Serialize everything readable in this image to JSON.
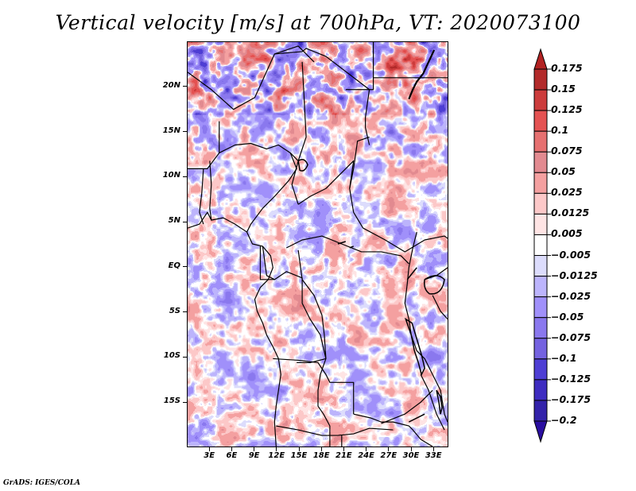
{
  "title": "Vertical velocity [m/s] at 700hPa, VT: 2020073100",
  "credit": "GrADS: IGES/COLA",
  "map": {
    "variable": "Vertical velocity",
    "units": "m/s",
    "level": "700hPa",
    "valid_time": "2020073100",
    "region": "Central Africa",
    "lon_range": [
      0,
      35
    ],
    "lat_range": [
      -20,
      25
    ],
    "y_axis_labels": [
      {
        "label": "20N",
        "lat": 20
      },
      {
        "label": "15N",
        "lat": 15
      },
      {
        "label": "10N",
        "lat": 10
      },
      {
        "label": "5N",
        "lat": 5
      },
      {
        "label": "EQ",
        "lat": 0
      },
      {
        "label": "5S",
        "lat": -5
      },
      {
        "label": "10S",
        "lat": -10
      },
      {
        "label": "15S",
        "lat": -15
      }
    ],
    "x_axis_labels": [
      {
        "label": "3E",
        "lon": 3
      },
      {
        "label": "6E",
        "lon": 6
      },
      {
        "label": "9E",
        "lon": 9
      },
      {
        "label": "12E",
        "lon": 12
      },
      {
        "label": "15E",
        "lon": 15
      },
      {
        "label": "18E",
        "lon": 18
      },
      {
        "label": "21E",
        "lon": 21
      },
      {
        "label": "24E",
        "lon": 24
      },
      {
        "label": "27E",
        "lon": 27
      },
      {
        "label": "30E",
        "lon": 30
      },
      {
        "label": "33E",
        "lon": 33
      }
    ]
  },
  "colorbar": {
    "labels": [
      "0.175",
      "0.15",
      "0.125",
      "0.1",
      "0.075",
      "0.05",
      "0.025",
      "0.0125",
      "0.005",
      "−0.005",
      "−0.0125",
      "−0.025",
      "−0.05",
      "−0.075",
      "−0.1",
      "−0.125",
      "−0.175",
      "−0.2"
    ],
    "top_arrow_color": "#b22222",
    "bottom_arrow_color": "#2a0ea0",
    "box_colors": [
      "#b22a2a",
      "#cc3c3c",
      "#e45252",
      "#e67070",
      "#e28a90",
      "#f4a0a0",
      "#fcc8c8",
      "#fee4e4",
      "#ffffff",
      "#dcdcfc",
      "#bcb4fc",
      "#a090fa",
      "#8a78ee",
      "#7462e0",
      "#4e3ed4",
      "#3e2cc0",
      "#3322aa"
    ],
    "boundaries": [
      0.175,
      0.15,
      0.125,
      0.1,
      0.075,
      0.05,
      0.025,
      0.0125,
      0.005,
      -0.005,
      -0.0125,
      -0.025,
      -0.05,
      -0.075,
      -0.1,
      -0.125,
      -0.175,
      -0.2
    ]
  }
}
